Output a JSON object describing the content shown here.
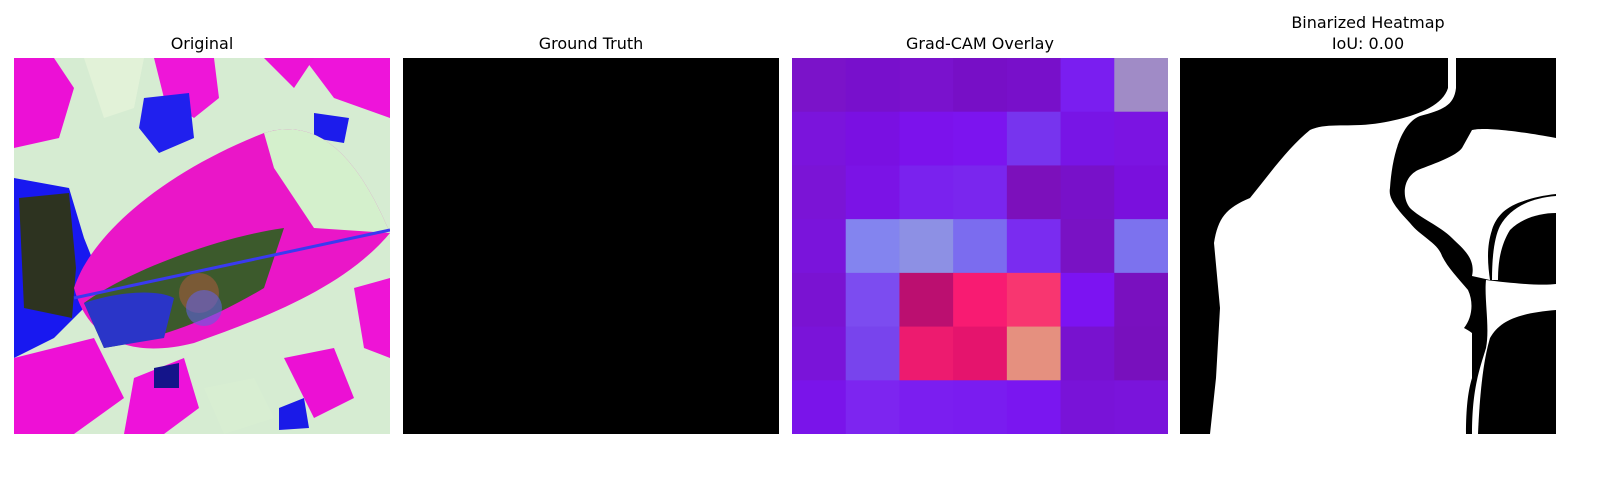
{
  "panels": [
    {
      "title": "Original"
    },
    {
      "title": "Ground Truth"
    },
    {
      "title": "Grad-CAM Overlay"
    },
    {
      "title": "Binarized Heatmap",
      "subtitle": "IoU: 0.00"
    }
  ],
  "colors": {
    "background": "#ffffff",
    "ground_truth_fill": "#000000",
    "mask_white": "#ffffff",
    "mask_black": "#000000"
  },
  "gradcam_grid": [
    [
      "#7b13c9",
      "#7810cc",
      "#7a12cd",
      "#770fc6",
      "#7810ca",
      "#7a1ef0",
      "#a08bc6"
    ],
    [
      "#7b14dc",
      "#7a10e2",
      "#7c12ec",
      "#7c14ef",
      "#7734ee",
      "#7815e6",
      "#7b14e2"
    ],
    [
      "#7b14d6",
      "#7b13e6",
      "#7a22ee",
      "#7a26ee",
      "#7c10bb",
      "#7811c9",
      "#7a10dd"
    ],
    [
      "#7a14db",
      "#8384ef",
      "#8d90e4",
      "#7b6cef",
      "#7a2cf0",
      "#7912c4",
      "#7c72ee"
    ],
    [
      "#7a13d2",
      "#7c4cf0",
      "#bb0f70",
      "#f81b72",
      "#f83670",
      "#7c13f2",
      "#7910bf"
    ],
    [
      "#7a14d9",
      "#7844ed",
      "#ed1b6f",
      "#e5146d",
      "#e5907f",
      "#7812cf",
      "#7810bd"
    ],
    [
      "#7a14ea",
      "#7d25f0",
      "#7b1ef0",
      "#7a1cf0",
      "#7a16f0",
      "#7913d8",
      "#7a14db"
    ]
  ]
}
